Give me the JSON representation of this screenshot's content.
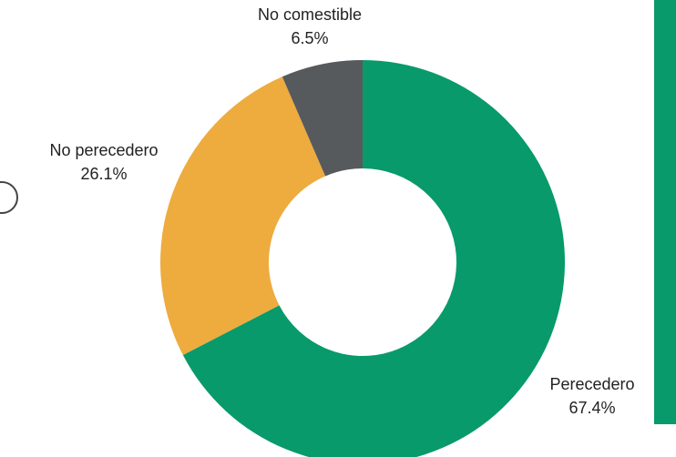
{
  "chart_data": {
    "type": "pie",
    "style": "donut",
    "slices": [
      {
        "label": "Perecedero",
        "value_label": "67.4%",
        "value": 67.4,
        "color": "#089a6a"
      },
      {
        "label": "No perecedero",
        "value_label": "26.1%",
        "value": 26.1,
        "color": "#eeab3e"
      },
      {
        "label": "No comestible",
        "value_label": "6.5%",
        "value": 6.5,
        "color": "#575a5c"
      }
    ],
    "legend": "none"
  },
  "colors": {
    "background": "#ffffff",
    "side_bar": "#089a6a",
    "edge_glyph": "#444444"
  }
}
